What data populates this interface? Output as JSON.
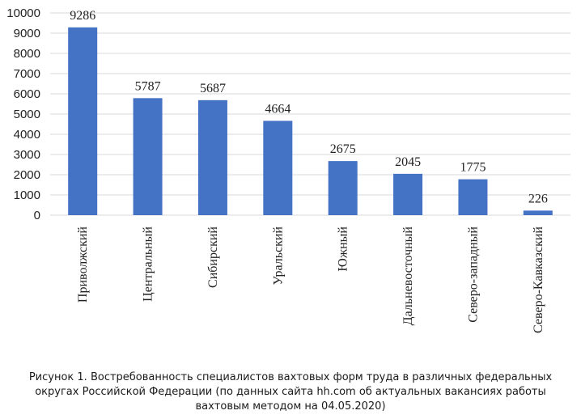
{
  "chart_data": {
    "type": "bar",
    "title": "",
    "xlabel": "",
    "ylabel": "",
    "ylim": [
      0,
      10000
    ],
    "yticks": [
      0,
      1000,
      2000,
      3000,
      4000,
      5000,
      6000,
      7000,
      8000,
      9000,
      10000
    ],
    "grid": true,
    "legend": "none",
    "bar_color": "#4472c4",
    "grid_color": "#d9d9d9",
    "categories": [
      "Приволжский",
      "Центральный",
      "Сибирский",
      "Уральский",
      "Южный",
      "Дальневосточный",
      "Северо-западный",
      "Северо-Кавказский"
    ],
    "values": [
      9286,
      5787,
      5687,
      4664,
      2675,
      2045,
      1775,
      226
    ]
  },
  "caption": {
    "line1": "Рисунок 1. Востребованность специалистов вахтовых форм труда в различных федеральных",
    "line2": "округах Российской Федерации (по данных сайта hh.com об актуальных вакансиях работы",
    "line3": "вахтовым методом на 04.05.2020)"
  }
}
